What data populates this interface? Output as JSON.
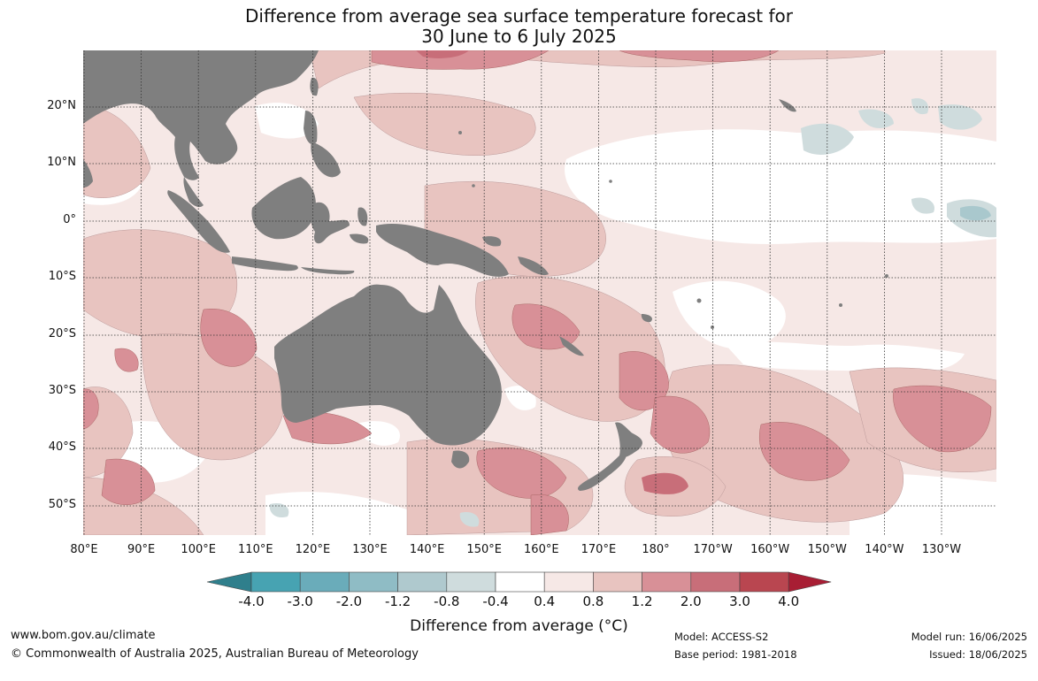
{
  "title": {
    "line1": "Difference from average sea surface temperature forecast for",
    "line2": "30 June to 6 July 2025"
  },
  "map": {
    "lat_labels": [
      "20°N",
      "10°N",
      "0°",
      "10°S",
      "20°S",
      "30°S",
      "40°S",
      "50°S"
    ],
    "lon_labels": [
      "80°E",
      "90°E",
      "100°E",
      "110°E",
      "120°E",
      "130°E",
      "140°E",
      "150°E",
      "160°E",
      "170°E",
      "180°",
      "170°W",
      "160°W",
      "150°W",
      "140°W",
      "130°W"
    ],
    "land_color": "#7f7f7f",
    "ocean_neutral_color": "#ffffff"
  },
  "colorbar": {
    "ticks": [
      "-4.0",
      "-3.0",
      "-2.0",
      "-1.2",
      "-0.8",
      "-0.4",
      "0.4",
      "0.8",
      "1.2",
      "2.0",
      "3.0",
      "4.0"
    ],
    "colors": [
      "#2f7f8c",
      "#47a3b2",
      "#6aacba",
      "#8fbcc5",
      "#afc9ce",
      "#cfdcdd",
      "#ffffff",
      "#f6e8e6",
      "#e8c4c0",
      "#d89097",
      "#c86e79",
      "#b94650",
      "#a81e34"
    ],
    "label": "Difference from average (°C)"
  },
  "footer": {
    "url": "www.bom.gov.au/climate",
    "copyright": "© Commonwealth of Australia 2025, Australian Bureau of Meteorology",
    "model": "Model: ACCESS-S2",
    "base_period": "Base period: 1981-2018",
    "model_run": "Model run: 16/06/2025",
    "issued": "Issued: 18/06/2025"
  }
}
